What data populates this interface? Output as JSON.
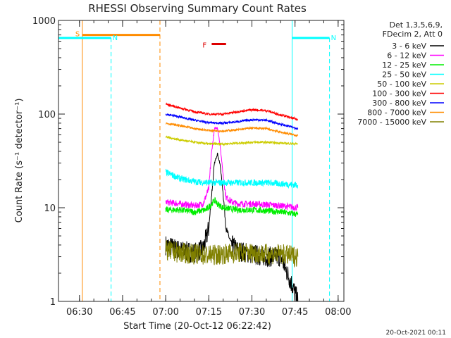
{
  "chart_data": {
    "type": "line",
    "title": "RHESSI Observing Summary Count Rates",
    "xlabel": "Start Time (20-Oct-12 06:22:42)",
    "ylabel": "Count Rate (s⁻¹ detector⁻¹)",
    "yscale": "log",
    "ylim": [
      1,
      1000
    ],
    "xlim_minutes": [
      "06:22:42",
      "08:02:00"
    ],
    "x_ticks": [
      "06:30",
      "06:45",
      "07:00",
      "07:15",
      "07:30",
      "07:45",
      "08:00"
    ],
    "y_ticks": [
      "1",
      "10",
      "100",
      "1000"
    ],
    "legend": {
      "placement": "top-right",
      "header": [
        "Det 1,3,5,6,9,",
        "FDecim 2, Att 0"
      ]
    },
    "series": [
      {
        "name": "3 - 6 keV",
        "color": "#000000",
        "x": [
          "07:00",
          "07:05",
          "07:10",
          "07:13",
          "07:15",
          "07:16",
          "07:17",
          "07:18",
          "07:19",
          "07:20",
          "07:21",
          "07:23",
          "07:25",
          "07:30",
          "07:35",
          "07:40",
          "07:44",
          "07:46"
        ],
        "y": [
          4,
          3.5,
          3.3,
          3.6,
          6,
          14,
          30,
          38,
          28,
          14,
          6,
          4,
          3.5,
          3.2,
          3.0,
          3.0,
          1.5,
          1.0
        ]
      },
      {
        "name": "6 - 12 keV",
        "color": "#ff00ff",
        "x": [
          "07:00",
          "07:05",
          "07:10",
          "07:13",
          "07:15",
          "07:16",
          "07:17",
          "07:18",
          "07:19",
          "07:20",
          "07:21",
          "07:23",
          "07:25",
          "07:30",
          "07:35",
          "07:40",
          "07:46"
        ],
        "y": [
          11.5,
          11,
          10.5,
          11,
          16,
          40,
          70,
          72,
          45,
          22,
          13,
          11.5,
          11,
          11,
          10.8,
          10.5,
          10
        ]
      },
      {
        "name": "12 - 25 keV",
        "color": "#00ee00",
        "x": [
          "07:00",
          "07:05",
          "07:10",
          "07:14",
          "07:16",
          "07:17",
          "07:18",
          "07:20",
          "07:25",
          "07:30",
          "07:35",
          "07:40",
          "07:46"
        ],
        "y": [
          9.5,
          9.5,
          9.0,
          9.5,
          11,
          12,
          11,
          10,
          9.5,
          9.5,
          9.3,
          9.0,
          8.5
        ]
      },
      {
        "name": "25 - 50 keV",
        "color": "#00ffff",
        "x": [
          "07:00",
          "07:05",
          "07:10",
          "07:15",
          "07:20",
          "07:25",
          "07:30",
          "07:35",
          "07:40",
          "07:46"
        ],
        "y": [
          24,
          20.5,
          19,
          18.5,
          18.5,
          18.5,
          18.5,
          18.5,
          18,
          17.5
        ]
      },
      {
        "name": "50 - 100 keV",
        "color": "#cccc00",
        "x": [
          "07:00",
          "07:05",
          "07:10",
          "07:15",
          "07:20",
          "07:25",
          "07:30",
          "07:35",
          "07:40",
          "07:46"
        ],
        "y": [
          57,
          53,
          50,
          48,
          48,
          49,
          50,
          50,
          49,
          48
        ]
      },
      {
        "name": "100 - 300 keV",
        "color": "#ff0000",
        "x": [
          "07:00",
          "07:05",
          "07:10",
          "07:15",
          "07:20",
          "07:25",
          "07:30",
          "07:35",
          "07:40",
          "07:46"
        ],
        "y": [
          128,
          116,
          106,
          100,
          100,
          106,
          111,
          109,
          98,
          87
        ]
      },
      {
        "name": "300 - 800 keV",
        "color": "#0000ff",
        "x": [
          "07:00",
          "07:05",
          "07:10",
          "07:15",
          "07:20",
          "07:25",
          "07:30",
          "07:35",
          "07:40",
          "07:46"
        ],
        "y": [
          100,
          93,
          86,
          81,
          80,
          83,
          87,
          86,
          78,
          70
        ]
      },
      {
        "name": "800 - 7000 keV",
        "color": "#ff8c00",
        "x": [
          "07:00",
          "07:05",
          "07:10",
          "07:15",
          "07:20",
          "07:25",
          "07:30",
          "07:35",
          "07:40",
          "07:46"
        ],
        "y": [
          80,
          75,
          70,
          67,
          66,
          68,
          71,
          70,
          64,
          59
        ]
      },
      {
        "name": "7000 - 15000 keV",
        "color": "#808000",
        "x": [
          "07:00",
          "07:05",
          "07:10",
          "07:15",
          "07:20",
          "07:25",
          "07:30",
          "07:35",
          "07:40",
          "07:46"
        ],
        "y": [
          3.5,
          3.3,
          3.2,
          3.1,
          3.2,
          3.3,
          3.3,
          3.2,
          3.2,
          3.0
        ]
      }
    ],
    "annotations": [
      {
        "label": "S",
        "color": "#ff8c00",
        "start": "06:31",
        "end": "06:58",
        "level": 700
      },
      {
        "label": "N",
        "color": "#00ffff",
        "start": "06:22:42",
        "end": "06:41",
        "level": 650
      },
      {
        "label": "N",
        "color": "#00ffff",
        "start": "07:44",
        "end": "07:57",
        "level": 650
      },
      {
        "label": "F",
        "color": "#dd0000",
        "start": "07:16",
        "end": "07:21",
        "level": 560
      }
    ],
    "footer": "20-Oct-2021 00:11"
  }
}
